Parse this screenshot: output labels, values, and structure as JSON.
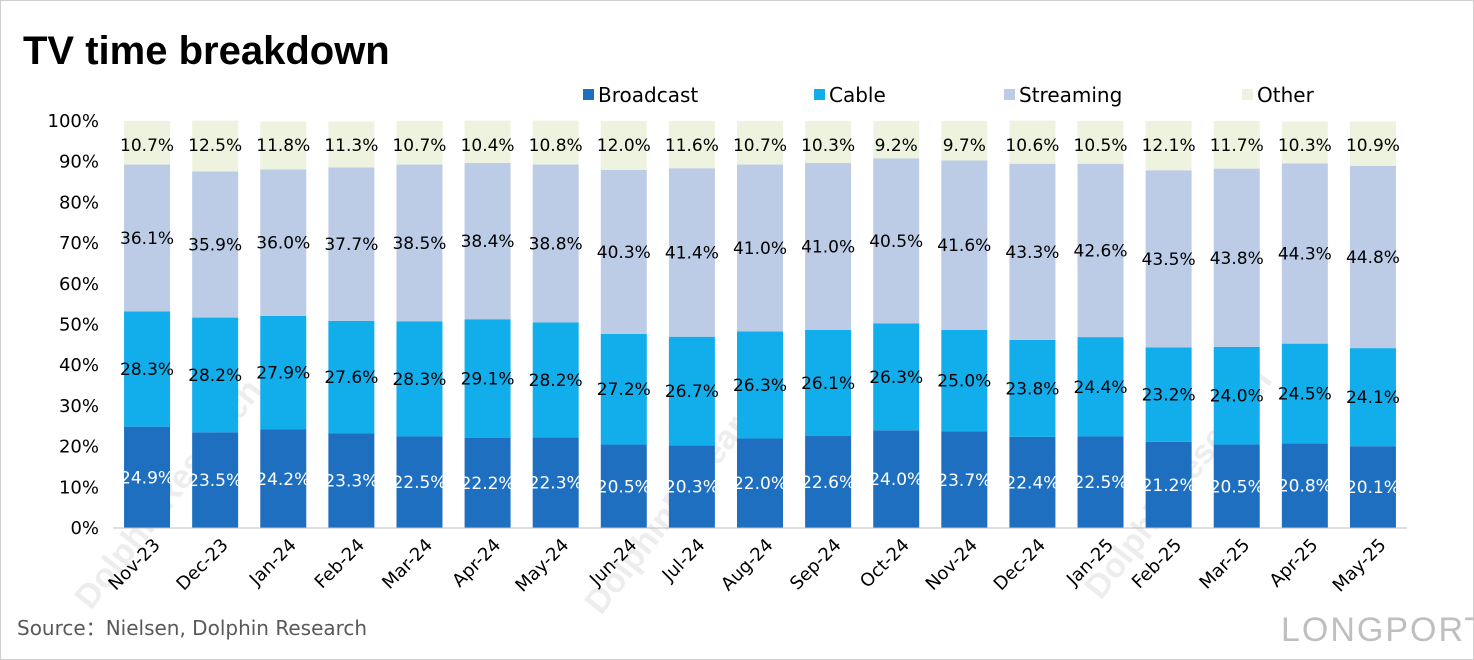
{
  "chart_data": {
    "type": "bar",
    "stacked": true,
    "title": "TV time breakdown",
    "categories": [
      "Nov-23",
      "Dec-23",
      "Jan-24",
      "Feb-24",
      "Mar-24",
      "Apr-24",
      "May-24",
      "Jun-24",
      "Jul-24",
      "Aug-24",
      "Sep-24",
      "Oct-24",
      "Nov-24",
      "Dec-24",
      "Jan-25",
      "Feb-25",
      "Mar-25",
      "Apr-25",
      "May-25"
    ],
    "series": [
      {
        "name": "Broadcast",
        "color": "#1f6fc1",
        "values": [
          24.9,
          23.5,
          24.2,
          23.3,
          22.5,
          22.2,
          22.3,
          20.5,
          20.3,
          22.0,
          22.6,
          24.0,
          23.7,
          22.4,
          22.5,
          21.2,
          20.5,
          20.8,
          20.1
        ]
      },
      {
        "name": "Cable",
        "color": "#12aeeb",
        "values": [
          28.3,
          28.2,
          27.9,
          27.6,
          28.3,
          29.1,
          28.2,
          27.2,
          26.7,
          26.3,
          26.1,
          26.3,
          25.0,
          23.8,
          24.4,
          23.2,
          24.0,
          24.5,
          24.1
        ]
      },
      {
        "name": "Streaming",
        "color": "#bccce6",
        "values": [
          36.1,
          35.9,
          36.0,
          37.7,
          38.5,
          38.4,
          38.8,
          40.3,
          41.4,
          41.0,
          41.0,
          40.5,
          41.6,
          43.3,
          42.6,
          43.5,
          43.8,
          44.3,
          44.8
        ]
      },
      {
        "name": "Other",
        "color": "#eef3df",
        "values": [
          10.7,
          12.5,
          11.8,
          11.3,
          10.7,
          10.4,
          10.8,
          12.0,
          11.6,
          10.7,
          10.3,
          9.2,
          9.7,
          10.6,
          10.5,
          12.1,
          11.7,
          10.3,
          10.9
        ]
      }
    ],
    "yticks": [
      "0%",
      "10%",
      "20%",
      "30%",
      "40%",
      "50%",
      "60%",
      "70%",
      "80%",
      "90%",
      "100%"
    ],
    "ylim": [
      0,
      100
    ],
    "legend_position": "top"
  },
  "source": "Source：Nielsen, Dolphin Research",
  "watermark": {
    "text": "DolphinResearch",
    "brand": "LONGPORT"
  }
}
